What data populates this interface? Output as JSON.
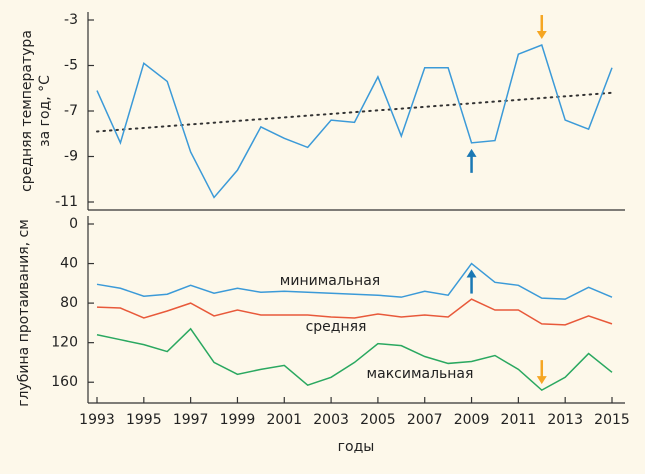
{
  "chart_data": [
    {
      "type": "line",
      "ylabel": [
        "средняя температура",
        "за год, °C"
      ],
      "x": [
        1993,
        1994,
        1995,
        1996,
        1997,
        1998,
        1999,
        2000,
        2001,
        2002,
        2003,
        2004,
        2005,
        2006,
        2007,
        2008,
        2009,
        2010,
        2011,
        2012,
        2013,
        2014,
        2015
      ],
      "values": [
        -6.1,
        -8.4,
        -4.9,
        -5.7,
        -8.8,
        -10.8,
        -9.6,
        -7.7,
        -8.2,
        -8.6,
        -7.4,
        -7.5,
        -5.5,
        -8.1,
        -5.1,
        -5.1,
        -8.4,
        -8.3,
        -4.5,
        -4.1,
        -7.4,
        -7.8,
        -5.1
      ],
      "color": "#3b9ad8",
      "trend": {
        "x": [
          1993,
          2015
        ],
        "values": [
          -7.9,
          -6.2
        ],
        "color": "#333333",
        "style": "dotted"
      },
      "xlim": [
        1993,
        2015
      ],
      "ylim": [
        -11,
        -3
      ],
      "yticks": [
        -3,
        -5,
        -7,
        -9,
        -11
      ],
      "arrows": [
        {
          "x": 2009,
          "direction": "up",
          "color": "#1a78b4"
        },
        {
          "x": 2012,
          "direction": "down",
          "color": "#f5a623"
        }
      ]
    },
    {
      "type": "line",
      "ylabel": [
        "глубина протаивания, см"
      ],
      "xlabel": "годы",
      "x": [
        1993,
        1994,
        1995,
        1996,
        1997,
        1998,
        1999,
        2000,
        2001,
        2002,
        2003,
        2004,
        2005,
        2006,
        2007,
        2008,
        2009,
        2010,
        2011,
        2012,
        2013,
        2014,
        2015
      ],
      "series": [
        {
          "name": "минимальная",
          "color": "#3b9ad8",
          "values": [
            61,
            65,
            73,
            71,
            62,
            70,
            65,
            69,
            68,
            69,
            70,
            71,
            72,
            74,
            68,
            72,
            40,
            59,
            62,
            75,
            76,
            64,
            74
          ]
        },
        {
          "name": "средняя",
          "color": "#e8593a",
          "values": [
            84,
            85,
            95,
            88,
            80,
            93,
            87,
            92,
            92,
            92,
            94,
            95,
            91,
            94,
            92,
            94,
            76,
            87,
            87,
            101,
            102,
            93,
            101
          ]
        },
        {
          "name": "максимальная",
          "color": "#2aa860",
          "values": [
            112,
            117,
            122,
            129,
            106,
            140,
            152,
            147,
            143,
            163,
            155,
            140,
            121,
            123,
            134,
            141,
            139,
            133,
            147,
            168,
            155,
            131,
            150
          ]
        }
      ],
      "xlim": [
        1993,
        2015
      ],
      "ylim": [
        0,
        180
      ],
      "inverted": true,
      "yticks": [
        0,
        40,
        80,
        120,
        160
      ],
      "xticks": [
        1993,
        1995,
        1997,
        1999,
        2001,
        2003,
        2005,
        2007,
        2009,
        2011,
        2013,
        2015
      ],
      "arrows": [
        {
          "x": 2009,
          "direction": "up",
          "color": "#1a78b4"
        },
        {
          "x": 2012,
          "direction": "down",
          "color": "#f5a623"
        }
      ]
    }
  ]
}
